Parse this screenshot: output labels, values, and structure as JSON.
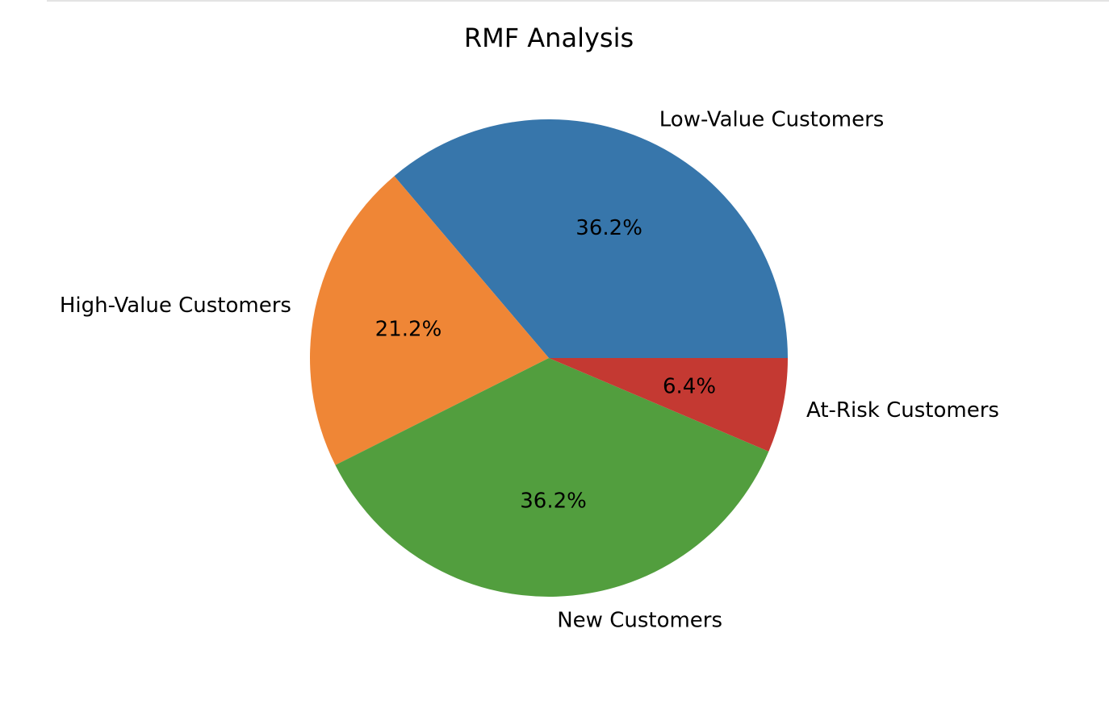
{
  "chart_data": {
    "type": "pie",
    "title": "RMF Analysis",
    "categories": [
      "Low-Value Customers",
      "High-Value Customers",
      "New Customers",
      "At-Risk Customers"
    ],
    "values": [
      36.2,
      21.2,
      36.2,
      6.4
    ],
    "value_labels": [
      "36.2%",
      "21.2%",
      "36.2%",
      "6.4%"
    ],
    "colors": [
      "#3776ab",
      "#ef8636",
      "#529e3e",
      "#c43932"
    ],
    "start_angle_deg": 0,
    "direction": "counterclockwise"
  }
}
